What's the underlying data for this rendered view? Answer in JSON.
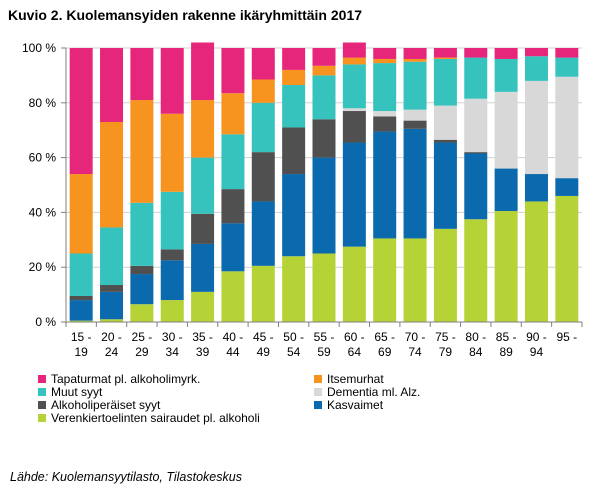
{
  "header": {
    "title": "Kuvio 2. Kuolemansyiden rakenne ikäryhmittäin 2017"
  },
  "footer": {
    "source": "Lähde: Kuolemansyytilasto, Tilastokeskus"
  },
  "chart_data": {
    "type": "bar",
    "stacked": true,
    "title": "Kuvio 2. Kuolemansyiden rakenne ikäryhmittäin 2017",
    "categories": [
      [
        "15 -",
        "19"
      ],
      [
        "20 -",
        "24"
      ],
      [
        "25 -",
        "29"
      ],
      [
        "30 -",
        "34"
      ],
      [
        "35 -",
        "39"
      ],
      [
        "40 -",
        "44"
      ],
      [
        "45 -",
        "49"
      ],
      [
        "50 -",
        "54"
      ],
      [
        "55 -",
        "59"
      ],
      [
        "60 -",
        "64"
      ],
      [
        "65 -",
        "69"
      ],
      [
        "70 -",
        "74"
      ],
      [
        "75 -",
        "79"
      ],
      [
        "80 -",
        "84"
      ],
      [
        "85 -",
        "89"
      ],
      [
        "90 -",
        "94"
      ],
      [
        "95 -",
        ""
      ]
    ],
    "ylim": [
      0,
      100
    ],
    "yticks": [
      0,
      20,
      40,
      60,
      80,
      100
    ],
    "ytick_labels": [
      "0 %",
      "20 %",
      "40 %",
      "60 %",
      "80 %",
      "100 %"
    ],
    "grid": true,
    "legend_position": "bottom",
    "series": [
      {
        "name": "Verenkiertoelinten sairaudet pl. alkoholi",
        "color": "#b5d336",
        "values": [
          0.5,
          1,
          6.5,
          8,
          11,
          18.5,
          20.5,
          24,
          25,
          27.5,
          30.5,
          30.5,
          34,
          37.5,
          40.5,
          44,
          46
        ]
      },
      {
        "name": "Kasvaimet",
        "color": "#0b6aad",
        "values": [
          7.5,
          10,
          11,
          14.5,
          17.5,
          17.5,
          23.5,
          30,
          35,
          38,
          39,
          40,
          31.5,
          24,
          15.5,
          10,
          6.5
        ]
      },
      {
        "name": "Alkoholiperäiset syyt",
        "color": "#505050",
        "values": [
          1.5,
          2.5,
          3,
          4,
          11,
          12.5,
          18,
          17,
          14,
          11.5,
          5.5,
          3,
          1,
          0.5,
          0,
          0,
          0
        ]
      },
      {
        "name": "Dementia ml. Alz.",
        "color": "#d8d8d8",
        "values": [
          0,
          0,
          0,
          0,
          0,
          0,
          0,
          0,
          0,
          1,
          2,
          4,
          12.5,
          19.5,
          28,
          34,
          37
        ]
      },
      {
        "name": "Muut  syyt",
        "color": "#36c3be",
        "values": [
          15.5,
          21,
          23,
          21,
          20.5,
          20,
          18,
          15.5,
          16,
          16,
          17.5,
          17.5,
          17,
          15,
          12,
          9,
          7
        ]
      },
      {
        "name": "Itsemurhat",
        "color": "#f79420",
        "values": [
          29,
          38.5,
          37.5,
          28.5,
          21,
          15,
          8.5,
          5.5,
          3.5,
          2.5,
          1.5,
          1,
          0.5,
          0,
          0,
          0,
          0
        ]
      },
      {
        "name": "Tapaturmat pl. alkoholimyrk.",
        "color": "#e5267a",
        "values": [
          46,
          27,
          19,
          24,
          21,
          16.5,
          11.5,
          8,
          6.5,
          5.5,
          4,
          4,
          3.5,
          3.5,
          4,
          3,
          3.5
        ]
      }
    ]
  },
  "legend": {
    "items": [
      {
        "label": "Tapaturmat pl. alkoholimyrk.",
        "color": "#e5267a"
      },
      {
        "label": "Itsemurhat",
        "color": "#f79420"
      },
      {
        "label": "Muut  syyt",
        "color": "#36c3be"
      },
      {
        "label": "Dementia ml. Alz.",
        "color": "#d8d8d8"
      },
      {
        "label": "Alkoholiperäiset syyt",
        "color": "#505050"
      },
      {
        "label": "Kasvaimet",
        "color": "#0b6aad"
      },
      {
        "label": "Verenkiertoelinten sairaudet pl. alkoholi",
        "color": "#b5d336"
      }
    ]
  }
}
